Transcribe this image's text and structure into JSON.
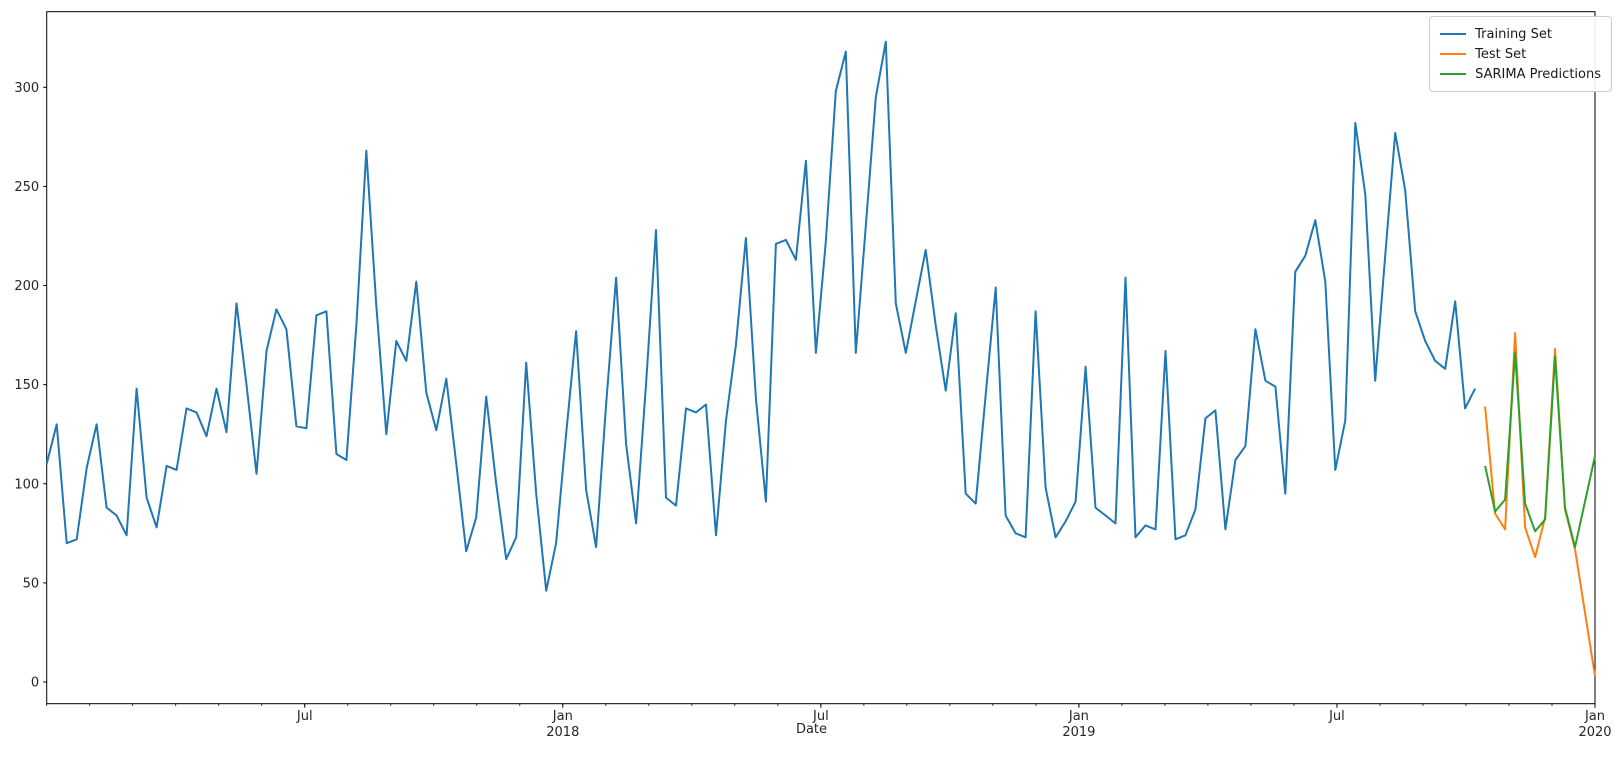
{
  "figure": {
    "background": "#ffffff",
    "plot_background": "#ffffff",
    "spine_color": "#000000"
  },
  "chart_data": {
    "type": "line",
    "title": "",
    "xlabel": "Date",
    "ylabel": "",
    "grid": false,
    "legend_position": "upper right",
    "ylim": [
      -10.95,
      338.1
    ],
    "y_ticks": [
      0,
      50,
      100,
      150,
      200,
      250,
      300
    ],
    "x_range_months": [
      "2017-01",
      "2020-01"
    ],
    "x_minor_ticks": "monthly",
    "x_major_ticks": [
      {
        "month_index": 6,
        "line1": "Jul",
        "line2": ""
      },
      {
        "month_index": 12,
        "line1": "Jan",
        "line2": "2018"
      },
      {
        "month_index": 18,
        "line1": "Jul",
        "line2": ""
      },
      {
        "month_index": 24,
        "line1": "Jan",
        "line2": "2019"
      },
      {
        "month_index": 30,
        "line1": "Jul",
        "line2": ""
      },
      {
        "month_index": 36,
        "line1": "Jan",
        "line2": "2020"
      }
    ],
    "weeks_total": 155,
    "series": [
      {
        "name": "Training Set",
        "color": "#1f77b4",
        "start_week": 0,
        "values": [
          110,
          130,
          70,
          72,
          108,
          130,
          88,
          84,
          74,
          148,
          93,
          78,
          109,
          107,
          138,
          136,
          124,
          148,
          126,
          191,
          150,
          105,
          167,
          188,
          178,
          129,
          128,
          185,
          187,
          115,
          112,
          180,
          268,
          190,
          125,
          172,
          162,
          202,
          146,
          127,
          153,
          110,
          66,
          83,
          144,
          100,
          62,
          73,
          161,
          95,
          46,
          70,
          125,
          177,
          97,
          68,
          140,
          204,
          120,
          80,
          150,
          228,
          93,
          89,
          138,
          136,
          140,
          74,
          132,
          170,
          224,
          143,
          91,
          221,
          223,
          213,
          263,
          166,
          222,
          298,
          318,
          166,
          230,
          295,
          323,
          191,
          166,
          192,
          218,
          180,
          147,
          186,
          95,
          90,
          145,
          199,
          84,
          75,
          73,
          187,
          98,
          73,
          81,
          91,
          159,
          88,
          84,
          80,
          204,
          73,
          79,
          77,
          167,
          72,
          74,
          87,
          133,
          137,
          77,
          112,
          119,
          178,
          152,
          149,
          95,
          207,
          215,
          233,
          202,
          107,
          132,
          282,
          246,
          152,
          215,
          277,
          248,
          187,
          172,
          162,
          158,
          192,
          138,
          148
        ]
      },
      {
        "name": "Test Set",
        "color": "#ff7f0e",
        "start_week": 144,
        "values": [
          139,
          85,
          77,
          176,
          78,
          63,
          83,
          168,
          87,
          67,
          35,
          3
        ]
      },
      {
        "name": "SARIMA Predictions",
        "color": "#2ca02c",
        "start_week": 144,
        "values": [
          109,
          86,
          92,
          166,
          90,
          76,
          82,
          164,
          88,
          68,
          91,
          114
        ]
      }
    ]
  }
}
